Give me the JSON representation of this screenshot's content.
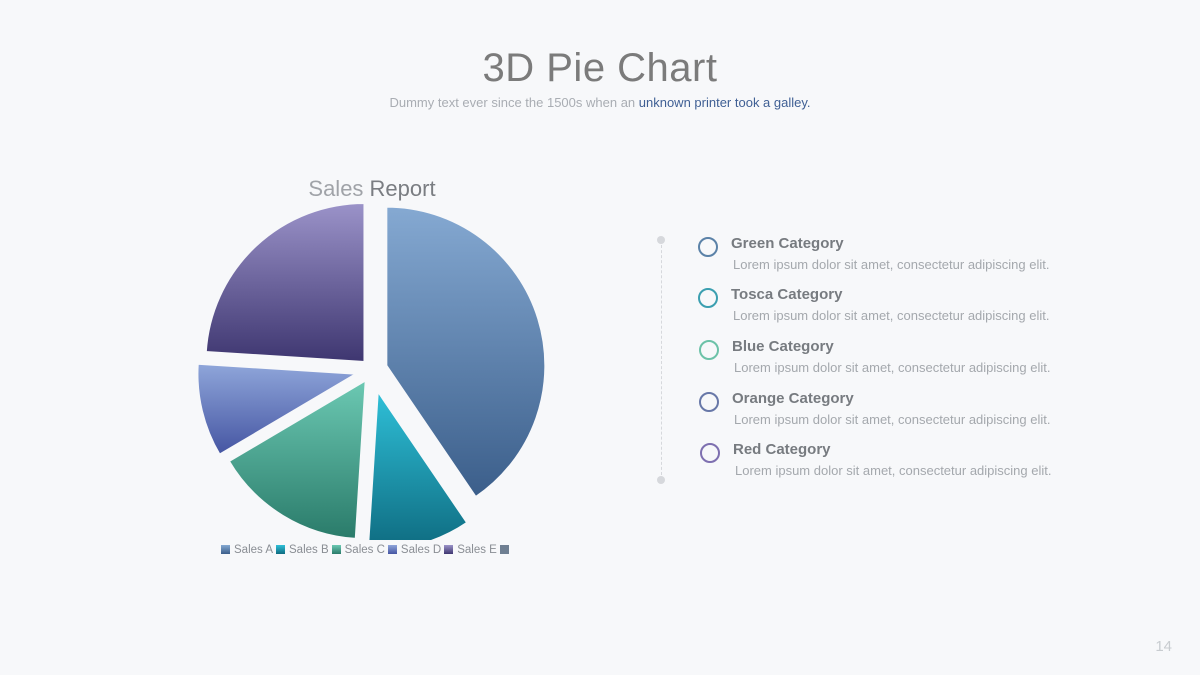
{
  "slide": {
    "title": "3D Pie Chart",
    "subtitle_plain": "Dummy text ever since the 1500s when an ",
    "subtitle_highlight": "unknown printer took a galley.",
    "page_number": "14"
  },
  "chart_title": {
    "light": "Sales ",
    "bold": "Report"
  },
  "chart_data": {
    "type": "pie",
    "title": "Sales Report",
    "categories": [
      "Sales A",
      "Sales B",
      "Sales C",
      "Sales D",
      "Sales E"
    ],
    "values": [
      40.5,
      10.5,
      15.5,
      9.5,
      24
    ],
    "colors_top": [
      "#85a9d2",
      "#2fc0d8",
      "#6cc9b3",
      "#8fa6da",
      "#9b93c9"
    ],
    "colors_bottom": [
      "#3b5e8a",
      "#0e6b80",
      "#2a7b6a",
      "#4555a2",
      "#3e3670"
    ],
    "legend_position": "bottom",
    "legend_extra_swatch": "#6f7f92"
  },
  "categories": [
    {
      "name": "Green Category",
      "desc": "Lorem ipsum dolor sit amet, consectetur adipiscing elit.",
      "ring_color": "#5b82a8"
    },
    {
      "name": "Tosca Category",
      "desc": "Lorem ipsum dolor sit amet, consectetur adipiscing elit.",
      "ring_color": "#3b9fb0"
    },
    {
      "name": "Blue Category",
      "desc": "Lorem ipsum dolor sit amet, consectetur adipiscing elit.",
      "ring_color": "#6cc2a8"
    },
    {
      "name": "Orange Category",
      "desc": "Lorem ipsum dolor sit amet, consectetur adipiscing elit.",
      "ring_color": "#6878a8"
    },
    {
      "name": "Red Category",
      "desc": "Lorem ipsum dolor sit amet, consectetur adipiscing elit.",
      "ring_color": "#7e70b0"
    }
  ]
}
